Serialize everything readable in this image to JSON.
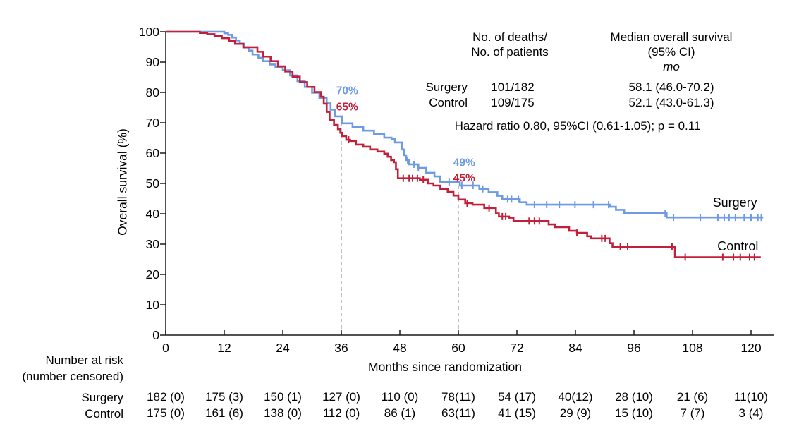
{
  "chart_data": {
    "type": "line",
    "subtype": "kaplan-meier-step",
    "title": "",
    "xlabel": "Months since randomization",
    "ylabel": "Overall survival (%)",
    "xlim": [
      0,
      120
    ],
    "ylim": [
      0,
      100
    ],
    "xticks": [
      0,
      12,
      24,
      36,
      48,
      60,
      72,
      84,
      96,
      108,
      120
    ],
    "yticks": [
      0,
      10,
      20,
      30,
      40,
      50,
      60,
      70,
      80,
      90,
      100
    ],
    "grid": "off",
    "reference_lines": [
      {
        "month": 36,
        "top_pct": 69.8,
        "style": "dashed",
        "color": "#999999"
      },
      {
        "month": 60,
        "top_pct": 50.2,
        "style": "dashed",
        "color": "#999999"
      }
    ],
    "series": [
      {
        "name": "Surgery",
        "color": "#6F9BE4",
        "steps": [
          [
            0,
            100
          ],
          [
            12,
            99.5
          ],
          [
            12.8,
            99
          ],
          [
            13.6,
            98.1
          ],
          [
            14.4,
            97.1
          ],
          [
            15.2,
            96.1
          ],
          [
            16,
            94.8
          ],
          [
            17,
            93.8
          ],
          [
            17.8,
            92.5
          ],
          [
            19,
            91.4
          ],
          [
            20,
            90.3
          ],
          [
            21.3,
            89.2
          ],
          [
            22.5,
            88.3
          ],
          [
            24,
            87.3
          ],
          [
            25.5,
            85.6
          ],
          [
            27,
            83.7
          ],
          [
            28.5,
            81.8
          ],
          [
            30,
            79.9
          ],
          [
            31.5,
            78.2
          ],
          [
            33,
            76.4
          ],
          [
            33.8,
            74.3
          ],
          [
            34.7,
            72.1
          ],
          [
            36.1,
            69.8
          ],
          [
            38.3,
            68.6
          ],
          [
            40.5,
            67.4
          ],
          [
            42.7,
            66.3
          ],
          [
            44.8,
            65.1
          ],
          [
            46.3,
            64.7
          ],
          [
            47,
            63.5
          ],
          [
            48.4,
            61.2
          ],
          [
            48.9,
            59.3
          ],
          [
            49.3,
            57.7
          ],
          [
            49.9,
            56.3
          ],
          [
            51.8,
            55.1
          ],
          [
            53.4,
            53.5
          ],
          [
            55.1,
            52.3
          ],
          [
            56.2,
            50.4
          ],
          [
            60.3,
            49.3
          ],
          [
            64.3,
            48.2
          ],
          [
            66.2,
            47.1
          ],
          [
            68,
            45.9
          ],
          [
            69,
            44.8
          ],
          [
            72.6,
            43.8
          ],
          [
            74,
            43
          ],
          [
            91.1,
            42.3
          ],
          [
            92.3,
            41.3
          ],
          [
            94,
            40.2
          ],
          [
            102.7,
            38.8
          ],
          [
            122.5,
            38.8
          ]
        ],
        "censor_marks": [
          49.6,
          50.9,
          51.8,
          58.1,
          60.7,
          63,
          65,
          70.1,
          70.9,
          72.3,
          75.6,
          78.1,
          80.7,
          83.9,
          87.7,
          90.8,
          102.4,
          104.1,
          109.6,
          113.2,
          114.5,
          115.5,
          116.8,
          118.6,
          120,
          121.4,
          122.1
        ]
      },
      {
        "name": "Control",
        "color": "#C1203B",
        "steps": [
          [
            0,
            100
          ],
          [
            7,
            99.6
          ],
          [
            8.5,
            99.2
          ],
          [
            10,
            98.6
          ],
          [
            11.5,
            97.9
          ],
          [
            13,
            97
          ],
          [
            14.2,
            96
          ],
          [
            15.9,
            94.9
          ],
          [
            18.8,
            93.4
          ],
          [
            20,
            91.8
          ],
          [
            21.5,
            90.3
          ],
          [
            23,
            88.6
          ],
          [
            24.5,
            86.9
          ],
          [
            26,
            85.2
          ],
          [
            27.5,
            83.4
          ],
          [
            29,
            81.8
          ],
          [
            30.5,
            80.1
          ],
          [
            31.8,
            78.6
          ],
          [
            32.4,
            76.3
          ],
          [
            33,
            73.6
          ],
          [
            33.6,
            71
          ],
          [
            34.5,
            69.3
          ],
          [
            35.3,
            67.9
          ],
          [
            35.8,
            66.7
          ],
          [
            36.2,
            65.6
          ],
          [
            37,
            64.4
          ],
          [
            37.8,
            64
          ],
          [
            39,
            62.8
          ],
          [
            40.5,
            62.1
          ],
          [
            41.9,
            61.2
          ],
          [
            43.4,
            60.5
          ],
          [
            44.8,
            59.8
          ],
          [
            45.5,
            58.8
          ],
          [
            46.2,
            57.7
          ],
          [
            46.8,
            57
          ],
          [
            47.2,
            54.7
          ],
          [
            47.6,
            51.7
          ],
          [
            52.1,
            51.2
          ],
          [
            53.8,
            50
          ],
          [
            54.9,
            49.3
          ],
          [
            56.3,
            48.1
          ],
          [
            57.8,
            47.2
          ],
          [
            59,
            46
          ],
          [
            60,
            44.7
          ],
          [
            61.4,
            43.5
          ],
          [
            62.9,
            43
          ],
          [
            65.3,
            41.9
          ],
          [
            67.7,
            40.1
          ],
          [
            68.3,
            39.1
          ],
          [
            70.4,
            38.7
          ],
          [
            71.3,
            37.6
          ],
          [
            78.5,
            36.5
          ],
          [
            79.8,
            35.6
          ],
          [
            82.7,
            34.4
          ],
          [
            84.3,
            33.7
          ],
          [
            86.4,
            32.6
          ],
          [
            87.2,
            31.9
          ],
          [
            91,
            30.3
          ],
          [
            91.6,
            29.1
          ],
          [
            104.4,
            25.7
          ],
          [
            122,
            25.7
          ]
        ],
        "censor_marks": [
          37.5,
          48.7,
          49.9,
          50.6,
          51.6,
          52.8,
          61.8,
          66.3,
          69,
          69.7,
          74.5,
          75.6,
          76.6,
          84.3,
          89.4,
          90.1,
          93.2,
          94.7,
          103.8,
          106.5,
          114.2,
          116.4,
          117.8,
          119.7,
          120.7
        ]
      }
    ],
    "point_labels": [
      {
        "text": "70%",
        "color": "#6F9BE4",
        "month": 37.2,
        "pct": 80.7
      },
      {
        "text": "65%",
        "color": "#C1203B",
        "month": 37.2,
        "pct": 75.3
      },
      {
        "text": "49%",
        "color": "#6F9BE4",
        "month": 61.2,
        "pct": 57.0
      },
      {
        "text": "45%",
        "color": "#C1203B",
        "month": 61.2,
        "pct": 51.9
      }
    ],
    "curve_labels": [
      {
        "text": "Surgery",
        "month": 116.7,
        "pct": 43.7
      },
      {
        "text": "Control",
        "month": 117.3,
        "pct": 29.3
      }
    ]
  },
  "stats": {
    "deaths_header": {
      "line1": "No. of deaths/",
      "line2": "No. of patients"
    },
    "median_header": {
      "line1": "Median overall survival",
      "line2": "(95% CI)",
      "line3": "mo"
    },
    "rows": [
      {
        "label": "Surgery",
        "deaths": "101/182",
        "median": "58.1 (46.0-70.2)"
      },
      {
        "label": "Control",
        "deaths": "109/175",
        "median": "52.1 (43.0-61.3)"
      }
    ],
    "hazard_line": "Hazard ratio 0.80, 95%CI (0.61-1.05); p = 0.11"
  },
  "risk_table": {
    "title_line1": "Number at risk",
    "title_line2": "(number censored)",
    "rows": [
      {
        "label": "Surgery",
        "values": [
          "182 (0)",
          "175 (3)",
          "150 (1)",
          "127 (0)",
          "110 (0)",
          "78(11)",
          "54 (17)",
          "40(12)",
          "28 (10)",
          "21 (6)",
          "11(10)"
        ]
      },
      {
        "label": "Control",
        "values": [
          "175 (0)",
          "161 (6)",
          "138 (0)",
          "112 (0)",
          "86 (1)",
          "63(11)",
          "41 (15)",
          "29 (9)",
          "15 (10)",
          "7 (7)",
          "3 (4)"
        ]
      }
    ]
  },
  "colors": {
    "axis": "#1a1a1a",
    "text": "#000000",
    "dash": "#999999"
  }
}
